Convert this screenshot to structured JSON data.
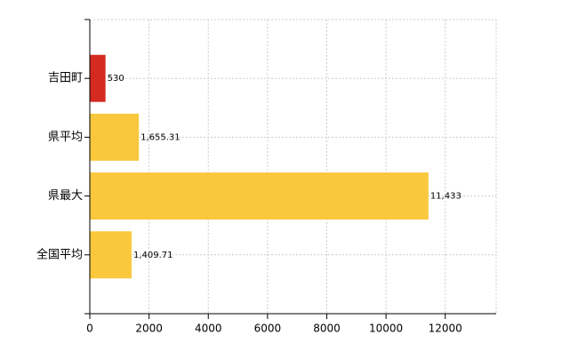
{
  "chart_data": {
    "type": "bar",
    "orientation": "horizontal",
    "categories": [
      "吉田町",
      "県平均",
      "県最大",
      "全国平均"
    ],
    "values": [
      530,
      1655.31,
      11433,
      1409.71
    ],
    "value_labels": [
      "530",
      "1,655.31",
      "11,433",
      "1,409.71"
    ],
    "colors": [
      "#d42a1f",
      "#f9c83c",
      "#f9c83c",
      "#f9c83c"
    ],
    "xlim": [
      0,
      13720
    ],
    "xticks": [
      0,
      2000,
      4000,
      6000,
      8000,
      10000,
      12000
    ],
    "grid": true
  }
}
